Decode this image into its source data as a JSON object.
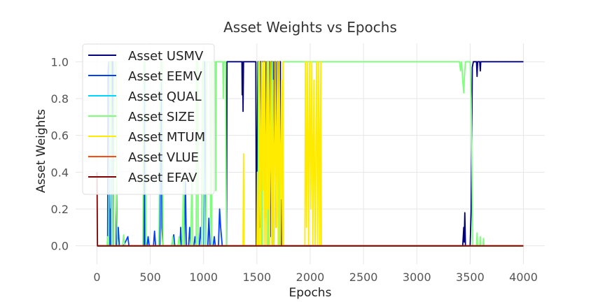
{
  "chart_data": {
    "type": "line",
    "title": "Asset Weights vs Epochs",
    "xlabel": "Epochs",
    "ylabel": "Asset Weights",
    "xlim": [
      -200,
      4200
    ],
    "ylim": [
      -0.1,
      1.1
    ],
    "xticks": [
      0,
      500,
      1000,
      1500,
      2000,
      2500,
      3000,
      3500,
      4000
    ],
    "yticks": [
      0.0,
      0.2,
      0.4,
      0.6,
      0.8,
      1.0
    ],
    "xtick_labels": [
      "0",
      "500",
      "1000",
      "1500",
      "2000",
      "2500",
      "3000",
      "3500",
      "4000"
    ],
    "ytick_labels": [
      "0.0",
      "0.2",
      "0.4",
      "0.6",
      "0.8",
      "1.0"
    ],
    "grid": true,
    "legend_position": "top-left",
    "series": [
      {
        "name": "Asset USMV",
        "color": "#00007f",
        "points": [
          [
            0,
            0
          ],
          [
            1200,
            0
          ],
          [
            1215,
            0
          ],
          [
            1220,
            1
          ],
          [
            1360,
            1
          ],
          [
            1362,
            0.82
          ],
          [
            1366,
            1
          ],
          [
            1370,
            0.73
          ],
          [
            1375,
            1
          ],
          [
            1490,
            1
          ],
          [
            1495,
            0
          ],
          [
            1510,
            1
          ],
          [
            1520,
            1
          ],
          [
            1525,
            0.1
          ],
          [
            1532,
            1
          ],
          [
            1580,
            1
          ],
          [
            1585,
            0.15
          ],
          [
            1592,
            1
          ],
          [
            1620,
            1
          ],
          [
            1625,
            0.05
          ],
          [
            1632,
            1
          ],
          [
            1650,
            1
          ],
          [
            1655,
            0
          ],
          [
            1660,
            0
          ],
          [
            1665,
            1
          ],
          [
            1675,
            1
          ],
          [
            1680,
            0.1
          ],
          [
            1688,
            1
          ],
          [
            1700,
            1
          ],
          [
            1705,
            0.05
          ],
          [
            1710,
            1
          ],
          [
            1720,
            1
          ],
          [
            1722,
            0
          ],
          [
            1730,
            0
          ],
          [
            1732,
            0.25
          ],
          [
            1736,
            0
          ],
          [
            3430,
            0
          ],
          [
            3440,
            0.1
          ],
          [
            3445,
            0.02
          ],
          [
            3450,
            0.18
          ],
          [
            3456,
            0
          ],
          [
            3500,
            0
          ],
          [
            3510,
            0.2
          ],
          [
            3520,
            0.97
          ],
          [
            3530,
            1
          ],
          [
            3560,
            1
          ],
          [
            3565,
            0.92
          ],
          [
            3570,
            1
          ],
          [
            3590,
            1
          ],
          [
            3595,
            0.95
          ],
          [
            3600,
            1
          ],
          [
            4000,
            1
          ]
        ]
      },
      {
        "name": "Asset EEMV",
        "color": "#0040ff",
        "points": [
          [
            0,
            0
          ],
          [
            100,
            0
          ],
          [
            105,
            0.95
          ],
          [
            112,
            1
          ],
          [
            115,
            0.3
          ],
          [
            120,
            0
          ],
          [
            125,
            0.2
          ],
          [
            130,
            0
          ],
          [
            140,
            1
          ],
          [
            150,
            1
          ],
          [
            153,
            0
          ],
          [
            180,
            0
          ],
          [
            185,
            0.35
          ],
          [
            190,
            0
          ],
          [
            200,
            0.1
          ],
          [
            210,
            0
          ],
          [
            250,
            0
          ],
          [
            290,
            0.05
          ],
          [
            300,
            0
          ],
          [
            440,
            0
          ],
          [
            445,
            1
          ],
          [
            452,
            0
          ],
          [
            470,
            0
          ],
          [
            480,
            0.05
          ],
          [
            490,
            0
          ],
          [
            530,
            0
          ],
          [
            540,
            0.08
          ],
          [
            550,
            0
          ],
          [
            590,
            0
          ],
          [
            600,
            1
          ],
          [
            610,
            0.1
          ],
          [
            620,
            0
          ],
          [
            700,
            0
          ],
          [
            720,
            0.06
          ],
          [
            730,
            0
          ],
          [
            780,
            0
          ],
          [
            785,
            0.1
          ],
          [
            790,
            0
          ],
          [
            820,
            0
          ],
          [
            830,
            0.35
          ],
          [
            838,
            0
          ],
          [
            860,
            0
          ],
          [
            870,
            0.1
          ],
          [
            880,
            0
          ],
          [
            910,
            0
          ],
          [
            920,
            0.05
          ],
          [
            930,
            0
          ],
          [
            960,
            0
          ],
          [
            970,
            0.1
          ],
          [
            980,
            0
          ],
          [
            1000,
            0
          ],
          [
            1010,
            1
          ],
          [
            1020,
            0
          ],
          [
            1040,
            0
          ],
          [
            1050,
            0.15
          ],
          [
            1060,
            0
          ],
          [
            1090,
            0
          ],
          [
            1100,
            0.05
          ],
          [
            1110,
            0
          ],
          [
            1140,
            0
          ],
          [
            1150,
            0.2
          ],
          [
            1160,
            0.1
          ],
          [
            1175,
            0
          ],
          [
            1200,
            0
          ],
          [
            4000,
            0
          ]
        ]
      },
      {
        "name": "Asset QUAL",
        "color": "#00d4ff",
        "points": [
          [
            0,
            0
          ],
          [
            4000,
            0
          ]
        ]
      },
      {
        "name": "Asset SIZE",
        "color": "#7dff7a",
        "points": [
          [
            0,
            0
          ],
          [
            95,
            0
          ],
          [
            100,
            0.05
          ],
          [
            110,
            0
          ],
          [
            118,
            1
          ],
          [
            132,
            1
          ],
          [
            138,
            0
          ],
          [
            155,
            0
          ],
          [
            160,
            0.9
          ],
          [
            170,
            1
          ],
          [
            180,
            1
          ],
          [
            185,
            0.2
          ],
          [
            192,
            0
          ],
          [
            240,
            0
          ],
          [
            250,
            0.06
          ],
          [
            260,
            0
          ],
          [
            430,
            0
          ],
          [
            440,
            1
          ],
          [
            452,
            1
          ],
          [
            460,
            0
          ],
          [
            580,
            0
          ],
          [
            590,
            0.6
          ],
          [
            600,
            1
          ],
          [
            612,
            1
          ],
          [
            620,
            0
          ],
          [
            700,
            0
          ],
          [
            710,
            0.05
          ],
          [
            720,
            0
          ],
          [
            760,
            0
          ],
          [
            770,
            0.05
          ],
          [
            780,
            0
          ],
          [
            800,
            0
          ],
          [
            812,
            0.4
          ],
          [
            818,
            0
          ],
          [
            880,
            0
          ],
          [
            890,
            0.4
          ],
          [
            900,
            0
          ],
          [
            930,
            0
          ],
          [
            935,
            1
          ],
          [
            945,
            1
          ],
          [
            950,
            0
          ],
          [
            980,
            0
          ],
          [
            990,
            1
          ],
          [
            1000,
            1
          ],
          [
            1005,
            0
          ],
          [
            1020,
            0
          ],
          [
            1030,
            1
          ],
          [
            1060,
            1
          ],
          [
            1065,
            0.2
          ],
          [
            1075,
            0
          ],
          [
            1080,
            1
          ],
          [
            1110,
            1
          ],
          [
            1115,
            0.3
          ],
          [
            1120,
            1
          ],
          [
            1180,
            1
          ],
          [
            1185,
            0.8
          ],
          [
            1190,
            1
          ],
          [
            1205,
            1
          ],
          [
            1215,
            0
          ],
          [
            1510,
            0
          ],
          [
            1515,
            1
          ],
          [
            1520,
            0
          ],
          [
            1540,
            0
          ],
          [
            1545,
            1
          ],
          [
            1550,
            0
          ],
          [
            1600,
            0
          ],
          [
            1605,
            1
          ],
          [
            1610,
            0
          ],
          [
            1640,
            0
          ],
          [
            1645,
            1
          ],
          [
            1650,
            0
          ],
          [
            1700,
            0
          ],
          [
            1705,
            1
          ],
          [
            1710,
            0
          ],
          [
            1740,
            0
          ],
          [
            1745,
            1
          ],
          [
            1755,
            1
          ],
          [
            1760,
            1
          ],
          [
            3400,
            1
          ],
          [
            3410,
            0.95
          ],
          [
            3420,
            1
          ],
          [
            3430,
            0.9
          ],
          [
            3440,
            0.83
          ],
          [
            3445,
            0.9
          ],
          [
            3455,
            1
          ],
          [
            3500,
            1
          ],
          [
            3510,
            0.8
          ],
          [
            3525,
            0
          ],
          [
            3560,
            0
          ],
          [
            3565,
            0.07
          ],
          [
            3570,
            0
          ],
          [
            3590,
            0
          ],
          [
            3595,
            0.05
          ],
          [
            3600,
            0
          ],
          [
            3620,
            0
          ],
          [
            3625,
            0.04
          ],
          [
            3630,
            0
          ],
          [
            4000,
            0
          ]
        ]
      },
      {
        "name": "Asset MTUM",
        "color": "#ffeb00",
        "points": [
          [
            0,
            0
          ],
          [
            1370,
            0
          ],
          [
            1375,
            0.5
          ],
          [
            1380,
            0
          ],
          [
            1500,
            0
          ],
          [
            1505,
            0.4
          ],
          [
            1510,
            0
          ],
          [
            1520,
            0
          ],
          [
            1525,
            1
          ],
          [
            1535,
            0
          ],
          [
            1545,
            1
          ],
          [
            1555,
            0.3
          ],
          [
            1560,
            1
          ],
          [
            1570,
            0
          ],
          [
            1575,
            1
          ],
          [
            1585,
            0
          ],
          [
            1595,
            1
          ],
          [
            1605,
            0.2
          ],
          [
            1612,
            1
          ],
          [
            1620,
            0
          ],
          [
            1630,
            1
          ],
          [
            1640,
            0
          ],
          [
            1650,
            0.9
          ],
          [
            1660,
            0
          ],
          [
            1670,
            1
          ],
          [
            1680,
            0.1
          ],
          [
            1690,
            1
          ],
          [
            1700,
            0
          ],
          [
            1710,
            1
          ],
          [
            1720,
            0
          ],
          [
            1730,
            0.9
          ],
          [
            1740,
            0
          ],
          [
            1745,
            1
          ],
          [
            1750,
            0
          ],
          [
            1950,
            0
          ],
          [
            1955,
            1
          ],
          [
            1965,
            0.1
          ],
          [
            1975,
            1
          ],
          [
            1985,
            0
          ],
          [
            1995,
            1
          ],
          [
            2005,
            0.2
          ],
          [
            2015,
            1
          ],
          [
            2025,
            0
          ],
          [
            2035,
            0.9
          ],
          [
            2045,
            0
          ],
          [
            2060,
            1
          ],
          [
            2070,
            0
          ],
          [
            2080,
            1
          ],
          [
            2090,
            0
          ],
          [
            2100,
            1
          ],
          [
            2105,
            0
          ],
          [
            4000,
            0
          ]
        ]
      },
      {
        "name": "Asset VLUE",
        "color": "#ff4a12",
        "points": [
          [
            0,
            0
          ],
          [
            4000,
            0
          ]
        ]
      },
      {
        "name": "Asset EFAV",
        "color": "#7f0000",
        "points": [
          [
            0,
            0.4
          ],
          [
            5,
            0
          ],
          [
            4000,
            0
          ]
        ]
      }
    ]
  }
}
